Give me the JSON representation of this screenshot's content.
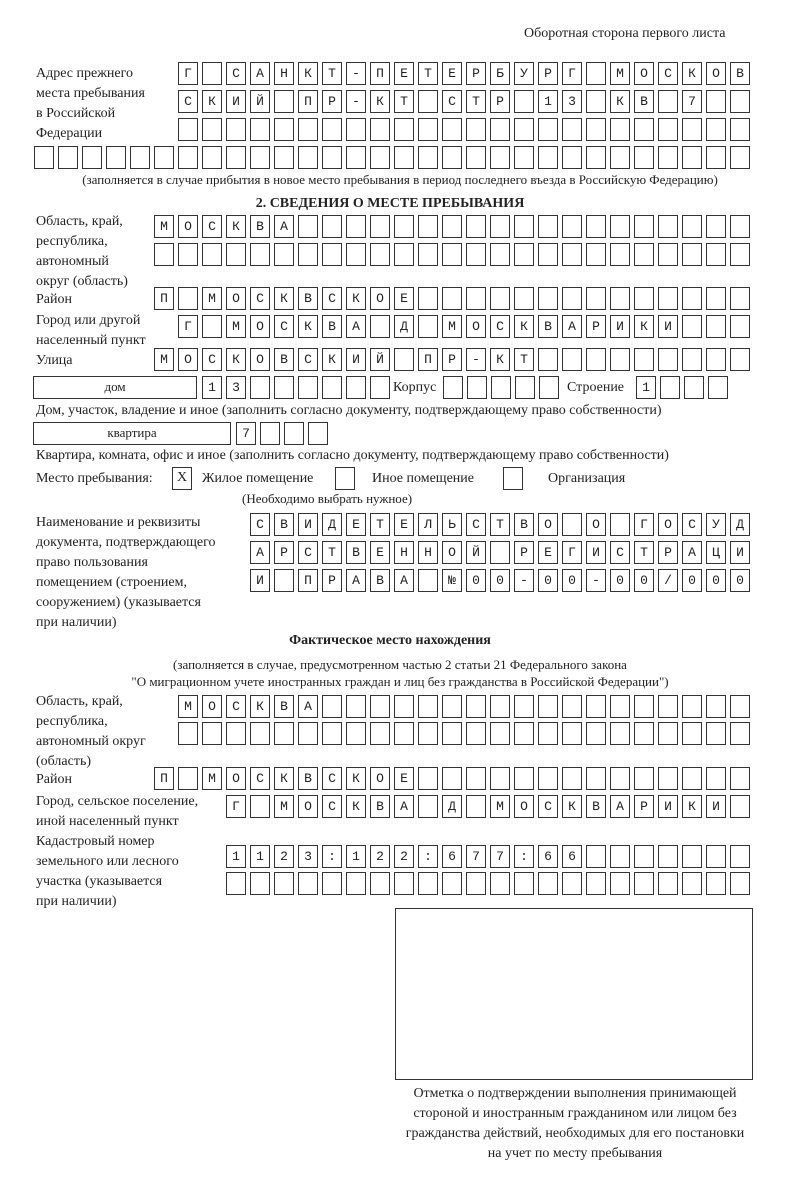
{
  "header": "Оборотная сторона первого листа",
  "prev_address": {
    "label": [
      "Адрес прежнего",
      "места пребывания",
      "в Российской",
      "Федерации"
    ],
    "rows": [
      "Г САНКТ-ПЕТЕРБУРГ МОСКОВ",
      "СКИЙ ПР-КТ СТР 13 КВ 7  ",
      "                        ",
      "                              "
    ],
    "note": "(заполняется в случае прибытия в новое место пребывания в период последнего въезда в Российскую Федерацию)"
  },
  "section2": {
    "title": "2. СВЕДЕНИЯ О МЕСТЕ ПРЕБЫВАНИЯ",
    "region_label": [
      "Область, край,",
      "республика,",
      "автономный",
      "округ (область)"
    ],
    "region_rows": [
      "МОСКВА                   ",
      "                         "
    ],
    "district_label": "Район",
    "district": "П МОСКВСКОЕ              ",
    "city_label": [
      "Город или другой",
      "населенный пункт"
    ],
    "city": "Г МОСКВА Д МОСКВАРИКИ   ",
    "street_label": "Улица",
    "street": "МОСКОВСКИЙ ПР-КТ         ",
    "house_type": "дом",
    "house": "13      ",
    "korpus_label": "Корпус",
    "korpus": "     ",
    "building_label": "Строение",
    "building": "1   ",
    "house_note": "Дом, участок, владение и иное (заполнить согласно документу, подтверждающему право собственности)",
    "apt_type": "квартира",
    "apt": "7   ",
    "apt_note": "Квартира, комната, офис и иное (заполнить согласно документу, подтверждающему право собственности)",
    "stay_label": "Место пребывания:",
    "options": [
      {
        "label": "Жилое помещение",
        "mark": "X"
      },
      {
        "label": "Иное помещение",
        "mark": ""
      },
      {
        "label": "Организация",
        "mark": ""
      }
    ],
    "options_note": "(Необходимо выбрать нужное)",
    "doc_label": [
      "Наименование и реквизиты",
      "документа, подтверждающего",
      "право пользования",
      "помещением (строением,",
      "сооружением) (указывается",
      "при наличии)"
    ],
    "doc_rows": [
      "СВИДЕТЕЛЬСТВО О ГОСУД",
      "АРСТВЕННОЙ РЕГИСТРАЦИ",
      "И ПРАВА №00-00-00/000"
    ]
  },
  "actual": {
    "title": "Фактическое место нахождения",
    "note": [
      "(заполняется в случае, предусмотренном частью 2 статьи 21 Федерального закона",
      "\"О миграционном учете иностранных граждан и лиц без гражданства в Российской Федерации\")"
    ],
    "region_label": [
      "Область, край,",
      "республика,",
      "автономный округ",
      "(область)"
    ],
    "region_rows": [
      "МОСКВА                  ",
      "                        "
    ],
    "district_label": "Район",
    "district": "П МОСКВСКОЕ              ",
    "city_label": [
      "Город, сельское поселение,",
      "иной населенный пункт"
    ],
    "city": "Г МОСКВА Д МОСКВАРИКИ ",
    "cadastre_label": [
      "Кадастровый номер",
      "земельного или лесного",
      "участка (указывается",
      "при наличии)"
    ],
    "cadastre_rows": [
      "1123:122:677:66       ",
      "                      "
    ]
  },
  "stamp_caption": [
    "Отметка о подтверждении выполнения принимающей",
    "стороной и иностранным гражданином или лицом без",
    "гражданства действий, необходимых для его постановки",
    "на учет по месту пребывания"
  ]
}
